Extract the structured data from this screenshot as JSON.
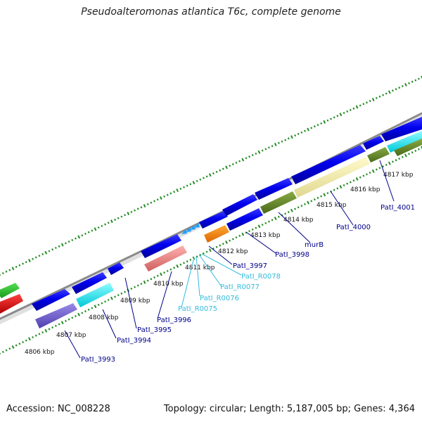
{
  "title": "Pseudoalteromonas atlantica T6c, complete genome",
  "footer": {
    "accession": "Accession: NC_008228",
    "summary": "Topology: circular; Length: 5,187,005 bp; Genes: 4,364"
  },
  "kbp_labels": [
    "4806 kbp",
    "4807 kbp",
    "4808 kbp",
    "4809 kbp",
    "4810 kbp",
    "4811 kbp",
    "4812 kbp",
    "4813 kbp",
    "4814 kbp",
    "4815 kbp",
    "4816 kbp",
    "4817 kbp"
  ],
  "gene_labels": [
    "PatI_3993",
    "PatI_3994",
    "PatI_3995",
    "PatI_3996",
    "PatI_R0075",
    "PatI_R0076",
    "PatI_R0077",
    "PatI_R0078",
    "PatI_3997",
    "PatI_3998",
    "murB",
    "PatI_4000",
    "PatI_4001"
  ],
  "colors": {
    "cds": "#0000ee",
    "rna": "#66ccff",
    "label_dark": "#00008b",
    "label_light": "#33bbdd",
    "backbone": "#999999",
    "ticks": "#228b22"
  }
}
